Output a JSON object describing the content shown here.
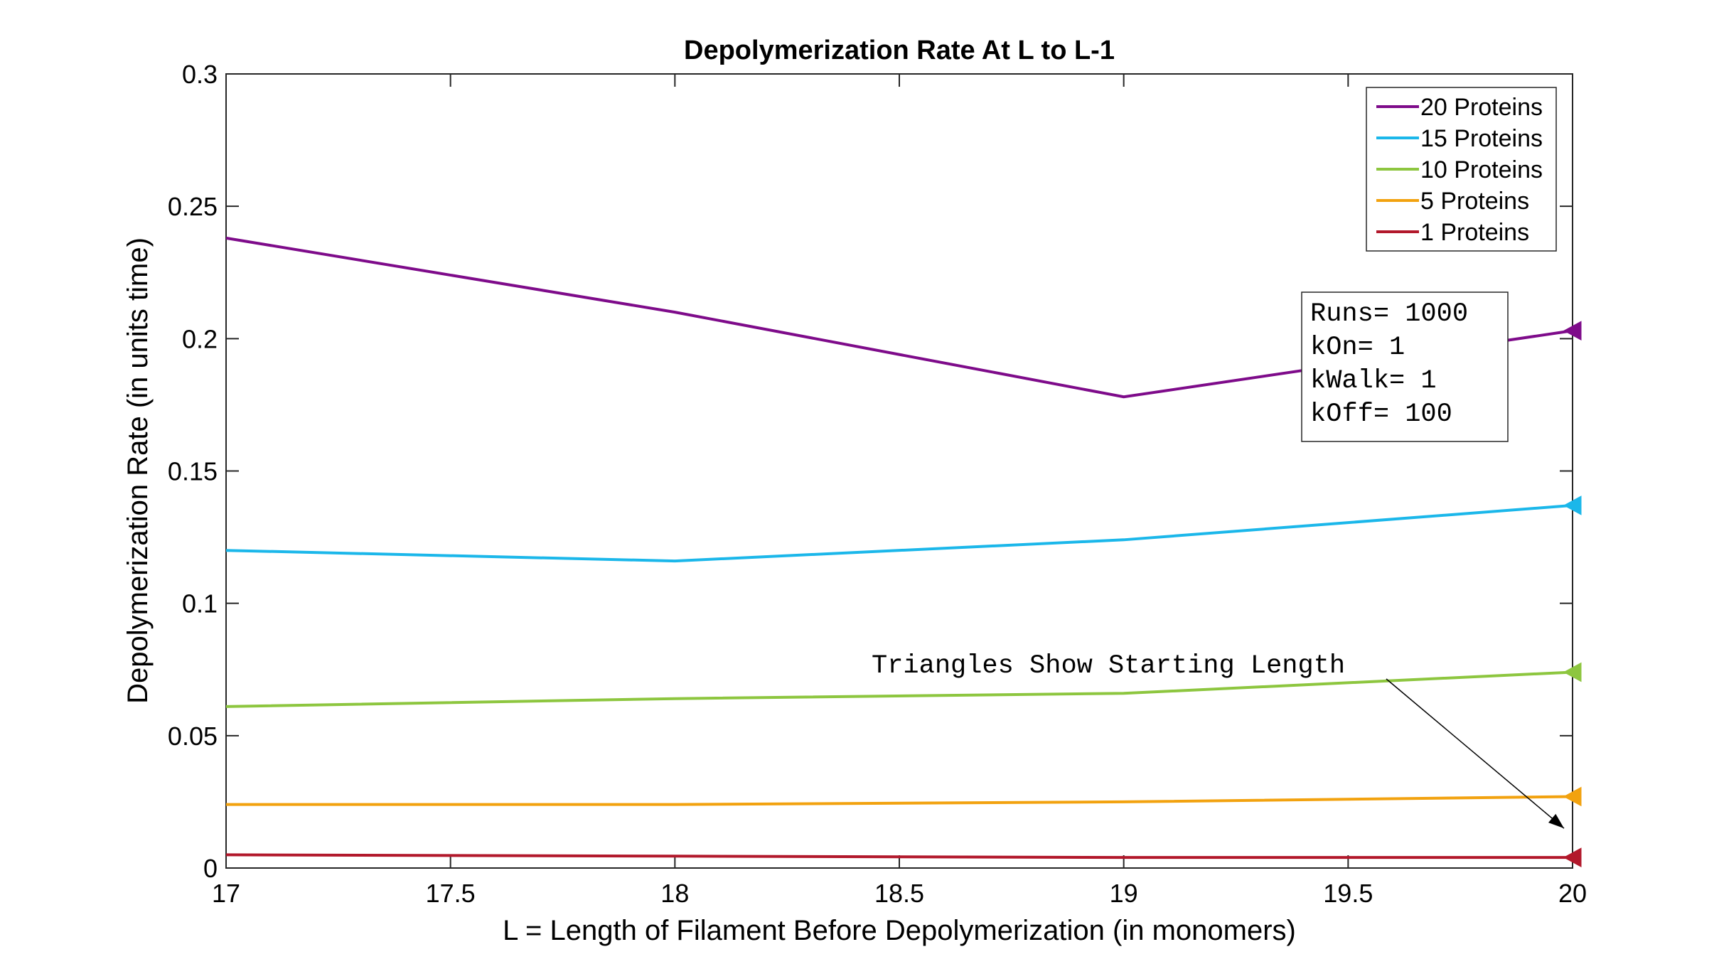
{
  "chart_data": {
    "type": "line",
    "title": "Depolymerization Rate At L to L-1",
    "xlabel": "L = Length of Filament Before Depolymerization (in monomers)",
    "ylabel": "Depolymerization Rate (in units time)",
    "xlim": [
      17,
      20
    ],
    "ylim": [
      0,
      0.3
    ],
    "xticks": [
      "17",
      "17.5",
      "18",
      "18.5",
      "19",
      "19.5",
      "20"
    ],
    "yticks": [
      "0",
      "0.05",
      "0.1",
      "0.15",
      "0.2",
      "0.25",
      "0.3"
    ],
    "x": [
      17,
      18,
      19,
      20
    ],
    "series": [
      {
        "name": "20 Proteins",
        "color": "#7E0B8A",
        "values": [
          0.238,
          0.21,
          0.178,
          0.203
        ]
      },
      {
        "name": "15 Proteins",
        "color": "#1BB7EA",
        "values": [
          0.12,
          0.116,
          0.124,
          0.137
        ]
      },
      {
        "name": "10 Proteins",
        "color": "#8DC63F",
        "values": [
          0.061,
          0.064,
          0.066,
          0.074
        ]
      },
      {
        "name": "5 Proteins",
        "color": "#F2A20F",
        "values": [
          0.024,
          0.024,
          0.025,
          0.027
        ]
      },
      {
        "name": "1 Proteins",
        "color": "#B2182B",
        "values": [
          0.005,
          0.0045,
          0.004,
          0.004
        ]
      }
    ],
    "legend_position": "top-right",
    "grid": false,
    "parameters_box": [
      "Runs= 1000",
      "kOn= 1",
      "kWalk= 1",
      "kOff= 100"
    ],
    "annotation": {
      "text": "Triangles Show Starting Length",
      "arrow_to": [
        20,
        0.015
      ]
    },
    "start_marker": "triangle"
  }
}
